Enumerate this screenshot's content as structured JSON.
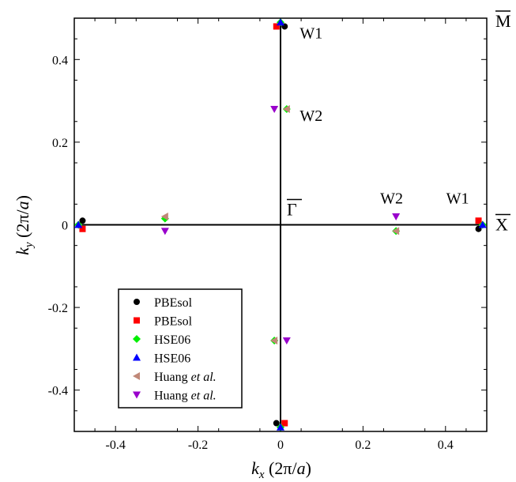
{
  "chart_data": {
    "type": "scatter",
    "xlabel": {
      "pre": "k",
      "sub": "x",
      "post": " (2π/a)"
    },
    "ylabel": {
      "pre": "k",
      "sub": "y",
      "post": " (2π/a)"
    },
    "xlim": [
      -0.5,
      0.5
    ],
    "ylim": [
      -0.5,
      0.5
    ],
    "xticks": [
      -0.4,
      -0.2,
      0,
      0.2,
      0.4
    ],
    "yticks": [
      -0.4,
      -0.2,
      0,
      0.2,
      0.4
    ],
    "xtick_labels": [
      "-0.4",
      "-0.2",
      "0",
      "0.2",
      "0.4"
    ],
    "ytick_labels": [
      "-0.4",
      "-0.2",
      "0",
      "0.2",
      "0.4"
    ],
    "grid": false,
    "legend_position": "bottom-left",
    "high_symmetry_labels": {
      "gamma": "Γ",
      "x": "X",
      "m": "M"
    },
    "annotations": [
      {
        "text": "W1",
        "x": 0.085,
        "y": 0.465
      },
      {
        "text": "W2",
        "x": 0.085,
        "y": 0.265
      },
      {
        "text": "W2",
        "x": 0.28,
        "y": 0.065
      },
      {
        "text": "W1",
        "x": 0.44,
        "y": 0.065
      }
    ],
    "series": [
      {
        "name": "PBEsol",
        "marker": "circle",
        "color": "#000000",
        "points": [
          [
            0.01,
            0.48
          ],
          [
            0.48,
            -0.01
          ],
          [
            -0.01,
            -0.48
          ],
          [
            -0.48,
            0.01
          ]
        ]
      },
      {
        "name": "PBEsol",
        "marker": "square",
        "color": "#ff0000",
        "points": [
          [
            -0.01,
            0.48
          ],
          [
            0.48,
            0.01
          ],
          [
            0.01,
            -0.48
          ],
          [
            -0.48,
            -0.01
          ]
        ]
      },
      {
        "name": "HSE06",
        "marker": "diamond",
        "color": "#00ee00",
        "points": [
          [
            0.015,
            0.28
          ],
          [
            0.28,
            -0.015
          ],
          [
            -0.015,
            -0.28
          ],
          [
            -0.28,
            0.015
          ],
          [
            0.0,
            0.49
          ],
          [
            0.49,
            0.0
          ],
          [
            0.0,
            -0.49
          ],
          [
            -0.49,
            0.0
          ]
        ]
      },
      {
        "name": "HSE06",
        "marker": "triangle-up",
        "color": "#0000ff",
        "points": [
          [
            0.0,
            0.49
          ],
          [
            0.49,
            0.0
          ],
          [
            0.0,
            -0.49
          ],
          [
            -0.49,
            0.0
          ]
        ]
      },
      {
        "name": "Huang",
        "name_italic": "et al.",
        "marker": "triangle-left",
        "color": "#c08878",
        "points": [
          [
            0.015,
            0.28
          ],
          [
            0.28,
            -0.015
          ],
          [
            -0.015,
            -0.28
          ],
          [
            -0.28,
            0.02
          ]
        ]
      },
      {
        "name": "Huang",
        "name_italic": "et al.",
        "marker": "triangle-down",
        "color": "#9900cc",
        "points": [
          [
            -0.015,
            0.28
          ],
          [
            0.28,
            0.02
          ],
          [
            0.015,
            -0.28
          ],
          [
            -0.28,
            -0.015
          ]
        ]
      }
    ]
  }
}
